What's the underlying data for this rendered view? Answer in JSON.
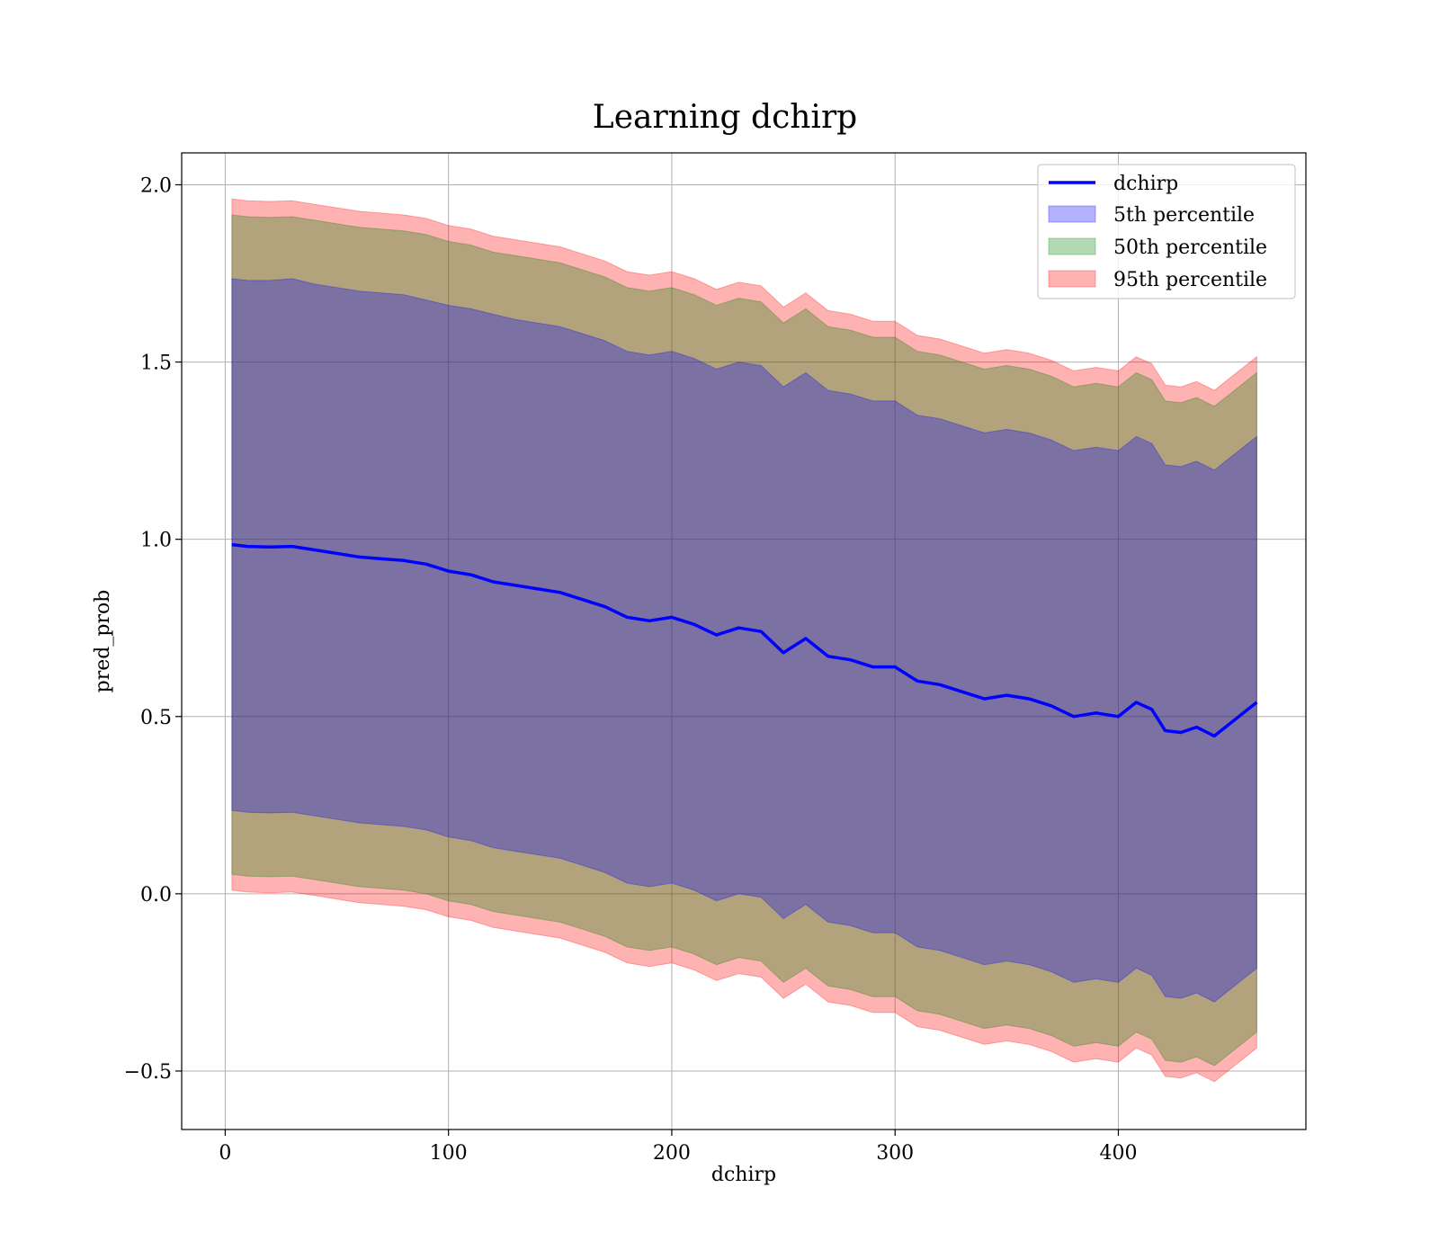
{
  "chart_data": {
    "type": "line",
    "title": "Learning dchirp",
    "xlabel": "dchirp",
    "ylabel": "pred_prob",
    "xlim": [
      -19.5,
      484
    ],
    "ylim": [
      -0.665,
      2.09
    ],
    "xticks": [
      0,
      100,
      200,
      300,
      400
    ],
    "xtick_labels": [
      "0",
      "100",
      "200",
      "300",
      "400"
    ],
    "yticks": [
      -0.5,
      0.0,
      0.5,
      1.0,
      1.5,
      2.0
    ],
    "ytick_labels": [
      "−0.5",
      "0.0",
      "0.5",
      "1.0",
      "1.5",
      "2.0"
    ],
    "grid": true,
    "legend_position": "top-right",
    "legend": [
      "dchirp",
      "5th percentile",
      "50th percentile",
      "95th percentile"
    ],
    "x": [
      3,
      10,
      20,
      30,
      40,
      50,
      60,
      70,
      80,
      90,
      100,
      110,
      120,
      130,
      140,
      150,
      160,
      170,
      180,
      190,
      200,
      210,
      220,
      230,
      240,
      250,
      260,
      270,
      280,
      290,
      300,
      310,
      320,
      330,
      340,
      350,
      360,
      370,
      380,
      390,
      400,
      408,
      415,
      421,
      428,
      435,
      443,
      450,
      456,
      462
    ],
    "series": [
      {
        "name": "dchirp",
        "color": "#0000ff",
        "values": [
          0.985,
          0.98,
          0.978,
          0.98,
          0.97,
          0.96,
          0.95,
          0.945,
          0.94,
          0.93,
          0.91,
          0.9,
          0.88,
          0.87,
          0.86,
          0.85,
          0.83,
          0.81,
          0.78,
          0.77,
          0.78,
          0.76,
          0.73,
          0.75,
          0.74,
          0.68,
          0.72,
          0.67,
          0.66,
          0.64,
          0.64,
          0.6,
          0.59,
          0.57,
          0.55,
          0.56,
          0.55,
          0.53,
          0.5,
          0.51,
          0.5,
          0.54,
          0.52,
          0.46,
          0.455,
          0.47,
          0.445,
          0.48,
          0.51,
          0.54
        ]
      },
      {
        "name": "5th percentile",
        "color": "#0000ff",
        "upper": [
          1.735,
          1.73,
          1.73,
          1.735,
          1.72,
          1.71,
          1.7,
          1.695,
          1.69,
          1.675,
          1.66,
          1.65,
          1.635,
          1.62,
          1.61,
          1.6,
          1.58,
          1.56,
          1.53,
          1.52,
          1.53,
          1.51,
          1.48,
          1.5,
          1.49,
          1.43,
          1.47,
          1.42,
          1.41,
          1.39,
          1.39,
          1.35,
          1.34,
          1.32,
          1.3,
          1.31,
          1.3,
          1.28,
          1.25,
          1.26,
          1.25,
          1.29,
          1.27,
          1.21,
          1.205,
          1.22,
          1.195,
          1.23,
          1.26,
          1.29
        ],
        "lower": [
          0.235,
          0.23,
          0.228,
          0.23,
          0.22,
          0.21,
          0.2,
          0.195,
          0.19,
          0.18,
          0.16,
          0.15,
          0.13,
          0.12,
          0.11,
          0.1,
          0.08,
          0.06,
          0.03,
          0.02,
          0.03,
          0.01,
          -0.02,
          0.0,
          -0.01,
          -0.07,
          -0.03,
          -0.08,
          -0.09,
          -0.11,
          -0.11,
          -0.15,
          -0.16,
          -0.18,
          -0.2,
          -0.19,
          -0.2,
          -0.22,
          -0.25,
          -0.24,
          -0.25,
          -0.21,
          -0.23,
          -0.29,
          -0.295,
          -0.28,
          -0.305,
          -0.27,
          -0.24,
          -0.21
        ]
      },
      {
        "name": "50th percentile",
        "color": "#008000",
        "upper": [
          1.915,
          1.91,
          1.908,
          1.91,
          1.9,
          1.89,
          1.88,
          1.875,
          1.87,
          1.86,
          1.84,
          1.83,
          1.81,
          1.8,
          1.79,
          1.78,
          1.76,
          1.74,
          1.71,
          1.7,
          1.71,
          1.69,
          1.66,
          1.68,
          1.67,
          1.61,
          1.65,
          1.6,
          1.59,
          1.57,
          1.57,
          1.53,
          1.52,
          1.5,
          1.48,
          1.49,
          1.48,
          1.46,
          1.43,
          1.44,
          1.43,
          1.47,
          1.45,
          1.39,
          1.385,
          1.4,
          1.375,
          1.41,
          1.44,
          1.47
        ],
        "lower": [
          0.055,
          0.05,
          0.048,
          0.05,
          0.04,
          0.03,
          0.02,
          0.015,
          0.01,
          0.0,
          -0.02,
          -0.03,
          -0.05,
          -0.06,
          -0.07,
          -0.08,
          -0.1,
          -0.12,
          -0.15,
          -0.16,
          -0.15,
          -0.17,
          -0.2,
          -0.18,
          -0.19,
          -0.25,
          -0.21,
          -0.26,
          -0.27,
          -0.29,
          -0.29,
          -0.33,
          -0.34,
          -0.36,
          -0.38,
          -0.37,
          -0.38,
          -0.4,
          -0.43,
          -0.42,
          -0.43,
          -0.39,
          -0.41,
          -0.47,
          -0.475,
          -0.46,
          -0.485,
          -0.45,
          -0.42,
          -0.39
        ]
      },
      {
        "name": "95th percentile",
        "color": "#ff0000",
        "upper": [
          1.96,
          1.955,
          1.953,
          1.955,
          1.945,
          1.935,
          1.925,
          1.92,
          1.915,
          1.905,
          1.885,
          1.875,
          1.855,
          1.845,
          1.835,
          1.825,
          1.805,
          1.785,
          1.755,
          1.745,
          1.755,
          1.735,
          1.705,
          1.725,
          1.715,
          1.655,
          1.695,
          1.645,
          1.635,
          1.615,
          1.615,
          1.575,
          1.565,
          1.545,
          1.525,
          1.535,
          1.525,
          1.505,
          1.475,
          1.485,
          1.475,
          1.515,
          1.495,
          1.435,
          1.43,
          1.445,
          1.42,
          1.455,
          1.485,
          1.515
        ],
        "lower": [
          0.01,
          0.005,
          0.003,
          0.005,
          -0.005,
          -0.015,
          -0.025,
          -0.03,
          -0.035,
          -0.045,
          -0.065,
          -0.075,
          -0.095,
          -0.105,
          -0.115,
          -0.125,
          -0.145,
          -0.165,
          -0.195,
          -0.205,
          -0.195,
          -0.215,
          -0.245,
          -0.225,
          -0.235,
          -0.295,
          -0.255,
          -0.305,
          -0.315,
          -0.335,
          -0.335,
          -0.375,
          -0.385,
          -0.405,
          -0.425,
          -0.415,
          -0.425,
          -0.445,
          -0.475,
          -0.465,
          -0.475,
          -0.435,
          -0.455,
          -0.515,
          -0.52,
          -0.505,
          -0.53,
          -0.495,
          -0.465,
          -0.435
        ]
      }
    ]
  }
}
